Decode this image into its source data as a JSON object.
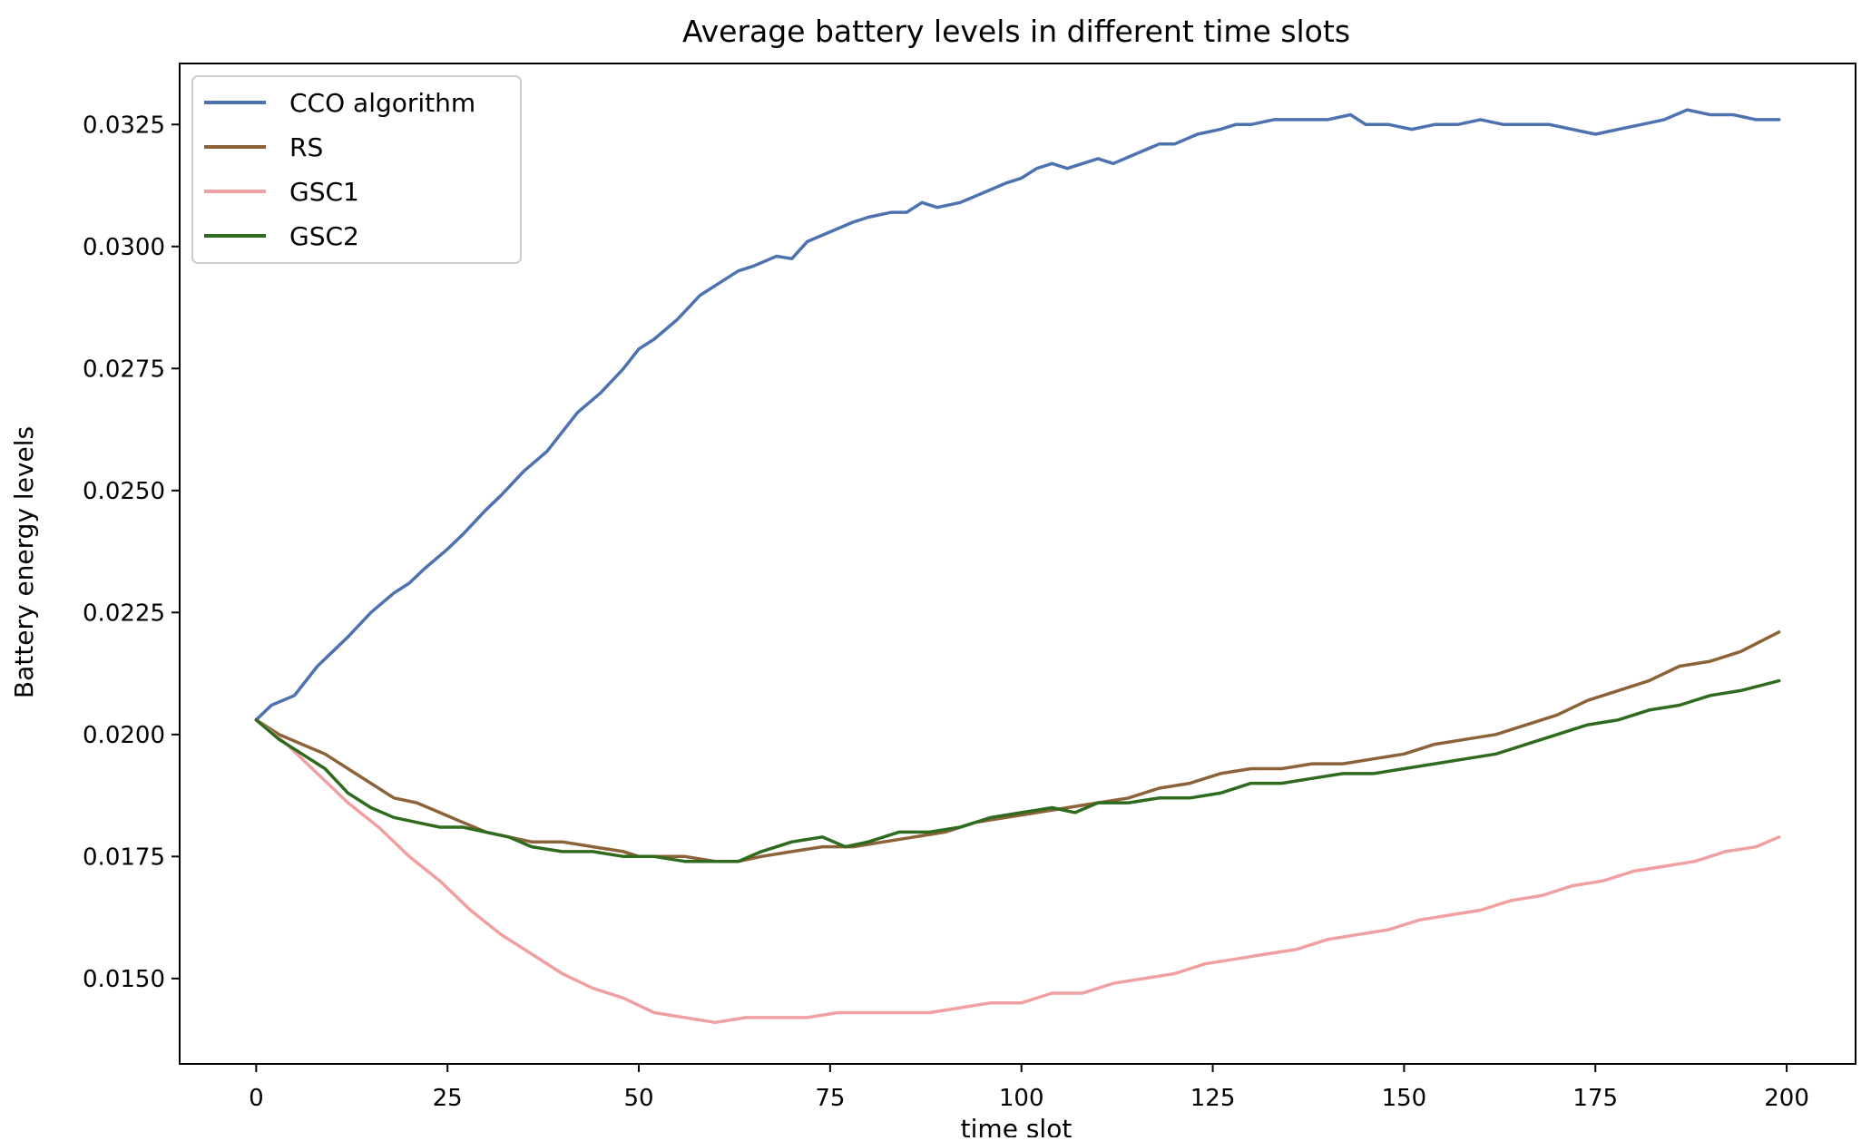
{
  "chart_data": {
    "type": "line",
    "title": "Average battery levels in different time slots",
    "xlabel": "time slot",
    "ylabel": "Battery energy levels",
    "xlim": [
      -10,
      209
    ],
    "ylim": [
      0.01325,
      0.03375
    ],
    "xticks": [
      0,
      25,
      50,
      75,
      100,
      125,
      150,
      175,
      200
    ],
    "xtick_labels": [
      "0",
      "25",
      "50",
      "75",
      "100",
      "125",
      "150",
      "175",
      "200"
    ],
    "yticks": [
      0.015,
      0.0175,
      0.02,
      0.0225,
      0.025,
      0.0275,
      0.03,
      0.0325
    ],
    "ytick_labels": [
      "0.0150",
      "0.0175",
      "0.0200",
      "0.0225",
      "0.0250",
      "0.0275",
      "0.0300",
      "0.0325"
    ],
    "grid": false,
    "legend_position": "top-left",
    "series": [
      {
        "name": "CCO algorithm",
        "color": "#4c72b0",
        "points": [
          [
            0,
            0.0203
          ],
          [
            2,
            0.0206
          ],
          [
            5,
            0.0208
          ],
          [
            8,
            0.0214
          ],
          [
            10,
            0.0217
          ],
          [
            12,
            0.022
          ],
          [
            15,
            0.0225
          ],
          [
            18,
            0.0229
          ],
          [
            20,
            0.0231
          ],
          [
            22,
            0.0234
          ],
          [
            25,
            0.0238
          ],
          [
            27,
            0.0241
          ],
          [
            30,
            0.0246
          ],
          [
            32,
            0.0249
          ],
          [
            35,
            0.0254
          ],
          [
            38,
            0.0258
          ],
          [
            40,
            0.0262
          ],
          [
            42,
            0.0266
          ],
          [
            45,
            0.027
          ],
          [
            48,
            0.0275
          ],
          [
            50,
            0.0279
          ],
          [
            52,
            0.0281
          ],
          [
            55,
            0.0285
          ],
          [
            58,
            0.029
          ],
          [
            60,
            0.0292
          ],
          [
            63,
            0.0295
          ],
          [
            65,
            0.0296
          ],
          [
            68,
            0.0298
          ],
          [
            70,
            0.02975
          ],
          [
            72,
            0.0301
          ],
          [
            75,
            0.0303
          ],
          [
            78,
            0.0305
          ],
          [
            80,
            0.0306
          ],
          [
            83,
            0.0307
          ],
          [
            85,
            0.0307
          ],
          [
            87,
            0.0309
          ],
          [
            89,
            0.0308
          ],
          [
            92,
            0.0309
          ],
          [
            95,
            0.0311
          ],
          [
            98,
            0.0313
          ],
          [
            100,
            0.0314
          ],
          [
            102,
            0.0316
          ],
          [
            104,
            0.0317
          ],
          [
            106,
            0.0316
          ],
          [
            108,
            0.0317
          ],
          [
            110,
            0.0318
          ],
          [
            112,
            0.0317
          ],
          [
            115,
            0.0319
          ],
          [
            118,
            0.0321
          ],
          [
            120,
            0.0321
          ],
          [
            123,
            0.0323
          ],
          [
            126,
            0.0324
          ],
          [
            128,
            0.0325
          ],
          [
            130,
            0.0325
          ],
          [
            133,
            0.0326
          ],
          [
            136,
            0.0326
          ],
          [
            140,
            0.0326
          ],
          [
            143,
            0.0327
          ],
          [
            145,
            0.0325
          ],
          [
            148,
            0.0325
          ],
          [
            151,
            0.0324
          ],
          [
            154,
            0.0325
          ],
          [
            157,
            0.0325
          ],
          [
            160,
            0.0326
          ],
          [
            163,
            0.0325
          ],
          [
            166,
            0.0325
          ],
          [
            169,
            0.0325
          ],
          [
            172,
            0.0324
          ],
          [
            175,
            0.0323
          ],
          [
            178,
            0.0324
          ],
          [
            181,
            0.0325
          ],
          [
            184,
            0.0326
          ],
          [
            187,
            0.0328
          ],
          [
            190,
            0.0327
          ],
          [
            193,
            0.0327
          ],
          [
            196,
            0.0326
          ],
          [
            199,
            0.0326
          ]
        ]
      },
      {
        "name": "RS",
        "color": "#8c6239",
        "points": [
          [
            0,
            0.0203
          ],
          [
            3,
            0.02
          ],
          [
            6,
            0.0198
          ],
          [
            9,
            0.0196
          ],
          [
            12,
            0.0193
          ],
          [
            15,
            0.019
          ],
          [
            18,
            0.0187
          ],
          [
            21,
            0.0186
          ],
          [
            24,
            0.0184
          ],
          [
            27,
            0.0182
          ],
          [
            30,
            0.018
          ],
          [
            33,
            0.0179
          ],
          [
            36,
            0.0178
          ],
          [
            40,
            0.0178
          ],
          [
            44,
            0.0177
          ],
          [
            48,
            0.0176
          ],
          [
            50,
            0.0175
          ],
          [
            53,
            0.0175
          ],
          [
            56,
            0.0175
          ],
          [
            60,
            0.0174
          ],
          [
            63,
            0.0174
          ],
          [
            66,
            0.0175
          ],
          [
            70,
            0.0176
          ],
          [
            74,
            0.0177
          ],
          [
            78,
            0.0177
          ],
          [
            82,
            0.0178
          ],
          [
            86,
            0.0179
          ],
          [
            90,
            0.018
          ],
          [
            94,
            0.0182
          ],
          [
            98,
            0.0183
          ],
          [
            102,
            0.0184
          ],
          [
            106,
            0.0185
          ],
          [
            110,
            0.0186
          ],
          [
            114,
            0.0187
          ],
          [
            118,
            0.0189
          ],
          [
            122,
            0.019
          ],
          [
            126,
            0.0192
          ],
          [
            130,
            0.0193
          ],
          [
            134,
            0.0193
          ],
          [
            138,
            0.0194
          ],
          [
            142,
            0.0194
          ],
          [
            146,
            0.0195
          ],
          [
            150,
            0.0196
          ],
          [
            154,
            0.0198
          ],
          [
            158,
            0.0199
          ],
          [
            162,
            0.02
          ],
          [
            166,
            0.0202
          ],
          [
            170,
            0.0204
          ],
          [
            174,
            0.0207
          ],
          [
            178,
            0.0209
          ],
          [
            182,
            0.0211
          ],
          [
            186,
            0.0214
          ],
          [
            190,
            0.0215
          ],
          [
            194,
            0.0217
          ],
          [
            199,
            0.0221
          ]
        ]
      },
      {
        "name": "GSC1",
        "color": "#f0a0a0",
        "points": [
          [
            0,
            0.0203
          ],
          [
            4,
            0.0198
          ],
          [
            8,
            0.0192
          ],
          [
            12,
            0.0186
          ],
          [
            16,
            0.0181
          ],
          [
            20,
            0.0175
          ],
          [
            24,
            0.017
          ],
          [
            28,
            0.0164
          ],
          [
            32,
            0.0159
          ],
          [
            36,
            0.0155
          ],
          [
            40,
            0.0151
          ],
          [
            44,
            0.0148
          ],
          [
            48,
            0.0146
          ],
          [
            52,
            0.0143
          ],
          [
            56,
            0.0142
          ],
          [
            60,
            0.0141
          ],
          [
            64,
            0.0142
          ],
          [
            68,
            0.0142
          ],
          [
            72,
            0.0142
          ],
          [
            76,
            0.0143
          ],
          [
            80,
            0.0143
          ],
          [
            84,
            0.0143
          ],
          [
            88,
            0.0143
          ],
          [
            92,
            0.0144
          ],
          [
            96,
            0.0145
          ],
          [
            100,
            0.0145
          ],
          [
            104,
            0.0147
          ],
          [
            108,
            0.0147
          ],
          [
            112,
            0.0149
          ],
          [
            116,
            0.015
          ],
          [
            120,
            0.0151
          ],
          [
            124,
            0.0153
          ],
          [
            128,
            0.0154
          ],
          [
            132,
            0.0155
          ],
          [
            136,
            0.0156
          ],
          [
            140,
            0.0158
          ],
          [
            144,
            0.0159
          ],
          [
            148,
            0.016
          ],
          [
            152,
            0.0162
          ],
          [
            156,
            0.0163
          ],
          [
            160,
            0.0164
          ],
          [
            164,
            0.0166
          ],
          [
            168,
            0.0167
          ],
          [
            172,
            0.0169
          ],
          [
            176,
            0.017
          ],
          [
            180,
            0.0172
          ],
          [
            184,
            0.0173
          ],
          [
            188,
            0.0174
          ],
          [
            192,
            0.0176
          ],
          [
            196,
            0.0177
          ],
          [
            199,
            0.0179
          ]
        ]
      },
      {
        "name": "GSC2",
        "color": "#2e6b1f",
        "points": [
          [
            0,
            0.0203
          ],
          [
            3,
            0.0199
          ],
          [
            6,
            0.0196
          ],
          [
            9,
            0.0193
          ],
          [
            12,
            0.0188
          ],
          [
            15,
            0.0185
          ],
          [
            18,
            0.0183
          ],
          [
            21,
            0.0182
          ],
          [
            24,
            0.0181
          ],
          [
            27,
            0.0181
          ],
          [
            30,
            0.018
          ],
          [
            33,
            0.0179
          ],
          [
            36,
            0.0177
          ],
          [
            40,
            0.0176
          ],
          [
            44,
            0.0176
          ],
          [
            48,
            0.0175
          ],
          [
            52,
            0.0175
          ],
          [
            56,
            0.0174
          ],
          [
            60,
            0.0174
          ],
          [
            63,
            0.0174
          ],
          [
            66,
            0.0176
          ],
          [
            70,
            0.0178
          ],
          [
            74,
            0.0179
          ],
          [
            77,
            0.0177
          ],
          [
            80,
            0.0178
          ],
          [
            84,
            0.018
          ],
          [
            88,
            0.018
          ],
          [
            92,
            0.0181
          ],
          [
            96,
            0.0183
          ],
          [
            100,
            0.0184
          ],
          [
            104,
            0.0185
          ],
          [
            107,
            0.0184
          ],
          [
            110,
            0.0186
          ],
          [
            114,
            0.0186
          ],
          [
            118,
            0.0187
          ],
          [
            122,
            0.0187
          ],
          [
            126,
            0.0188
          ],
          [
            130,
            0.019
          ],
          [
            134,
            0.019
          ],
          [
            138,
            0.0191
          ],
          [
            142,
            0.0192
          ],
          [
            146,
            0.0192
          ],
          [
            150,
            0.0193
          ],
          [
            154,
            0.0194
          ],
          [
            158,
            0.0195
          ],
          [
            162,
            0.0196
          ],
          [
            166,
            0.0198
          ],
          [
            170,
            0.02
          ],
          [
            174,
            0.0202
          ],
          [
            178,
            0.0203
          ],
          [
            182,
            0.0205
          ],
          [
            186,
            0.0206
          ],
          [
            190,
            0.0208
          ],
          [
            194,
            0.0209
          ],
          [
            199,
            0.0211
          ]
        ]
      }
    ]
  }
}
